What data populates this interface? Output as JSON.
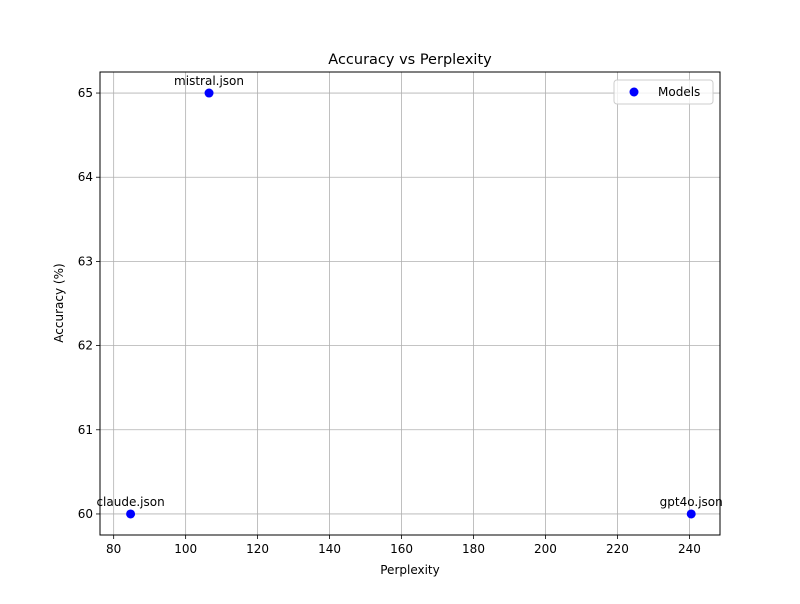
{
  "chart_data": {
    "type": "scatter",
    "title": "Accuracy vs Perplexity",
    "xlabel": "Perplexity",
    "ylabel": "Accuracy (%)",
    "xlim": [
      76.2,
      248.5
    ],
    "ylim": [
      59.75,
      65.25
    ],
    "xticks": [
      80,
      100,
      120,
      140,
      160,
      180,
      200,
      220,
      240
    ],
    "yticks": [
      60,
      61,
      62,
      63,
      64,
      65
    ],
    "grid": true,
    "legend_position": "top-right",
    "series": [
      {
        "name": "Models",
        "color": "#0000ff",
        "marker": "circle",
        "points": [
          {
            "label": "claude.json",
            "x": 84.7,
            "y": 60
          },
          {
            "label": "mistral.json",
            "x": 106.5,
            "y": 65
          },
          {
            "label": "gpt4o.json",
            "x": 240.5,
            "y": 60
          }
        ]
      }
    ]
  }
}
